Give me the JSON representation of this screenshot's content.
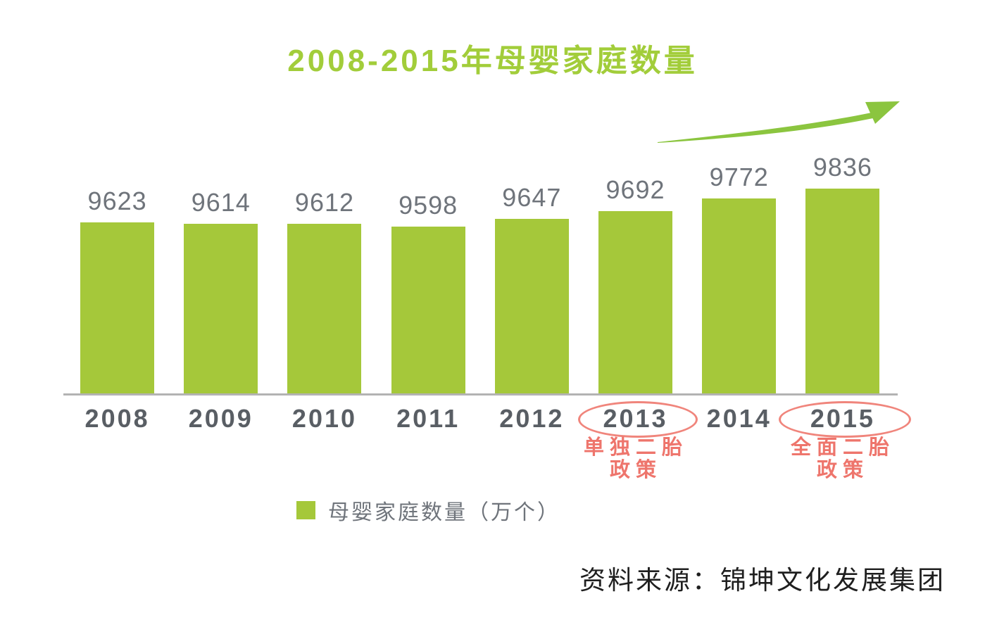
{
  "chart_data": {
    "type": "bar",
    "title": "2008-2015年母婴家庭数量",
    "categories": [
      "2008",
      "2009",
      "2010",
      "2011",
      "2012",
      "2013",
      "2014",
      "2015"
    ],
    "values": [
      9623,
      9614,
      9612,
      9598,
      9647,
      9692,
      9772,
      9836
    ],
    "xlabel": "",
    "ylabel": "",
    "ylim": [
      8536,
      10000
    ],
    "grid": false,
    "legend": [
      {
        "label": "母婴家庭数量（万个）",
        "color": "#a5c83a"
      }
    ],
    "legend_position": "bottom",
    "annotations": [
      {
        "category": "2013",
        "circled": true,
        "label": "单独二胎\n政策",
        "ellipse_width": 164,
        "ellipse_height": 46
      },
      {
        "category": "2015",
        "circled": true,
        "label": "全面二胎\n政策",
        "ellipse_width": 182,
        "ellipse_height": 46
      }
    ],
    "trend_arrow": {
      "present": true,
      "direction": "up-right"
    },
    "colors": {
      "bar": "#a5c83a",
      "title": "#a2cd3a",
      "value_label": "#6f747b",
      "axis_label": "#595e64",
      "axis_line": "#b3b3b3",
      "annotation_text": "#ee756c",
      "ellipse_stroke": "#f0857c",
      "arrow": "#8bc53f",
      "source_text": "#1f1f1f"
    }
  },
  "source": "资料来源：锦坤文化发展集团"
}
